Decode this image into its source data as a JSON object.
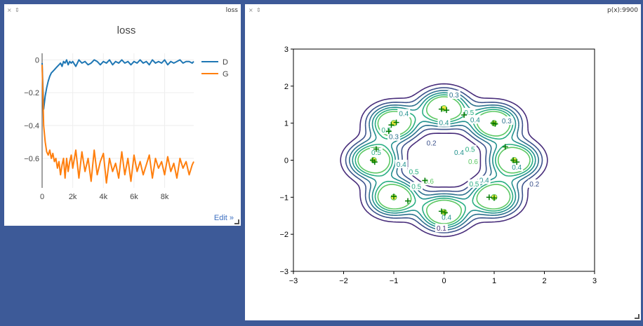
{
  "panes": {
    "loss": {
      "close_icon": "×",
      "pin_icon": "⇕",
      "title_tag": "loss",
      "edit_label": "Edit »"
    },
    "contour": {
      "close_icon": "×",
      "pin_icon": "⇕",
      "title_tag": "p(x):9900"
    }
  },
  "colors": {
    "background": "#3d5a98",
    "series_D": "#1f77b4",
    "series_G": "#ff7f0e"
  },
  "chart_data": [
    {
      "type": "line",
      "title": "loss",
      "xlabel": "",
      "ylabel": "",
      "xlim": [
        0,
        9900
      ],
      "ylim": [
        -0.78,
        0.04
      ],
      "x_ticks": [
        0,
        2000,
        4000,
        6000,
        8000
      ],
      "x_tick_labels": [
        "0",
        "2k",
        "4k",
        "6k",
        "8k"
      ],
      "y_ticks": [
        0,
        -0.2,
        -0.4,
        -0.6
      ],
      "y_tick_labels": [
        "0",
        "−0.2",
        "−0.4",
        "−0.6"
      ],
      "grid": true,
      "legend_position": "right",
      "series": [
        {
          "name": "D",
          "color": "#1f77b4",
          "x": [
            0,
            100,
            200,
            300,
            400,
            500,
            600,
            700,
            800,
            900,
            1000,
            1100,
            1200,
            1300,
            1400,
            1500,
            1600,
            1700,
            1800,
            1900,
            2000,
            2200,
            2400,
            2600,
            2800,
            3000,
            3200,
            3400,
            3600,
            3800,
            4000,
            4200,
            4400,
            4600,
            4800,
            5000,
            5200,
            5400,
            5600,
            5800,
            6000,
            6200,
            6400,
            6600,
            6800,
            7000,
            7200,
            7400,
            7600,
            7800,
            8000,
            8200,
            8400,
            8600,
            8800,
            9000,
            9200,
            9400,
            9600,
            9800,
            9900
          ],
          "y": [
            -0.02,
            -0.3,
            -0.22,
            -0.17,
            -0.13,
            -0.1,
            -0.08,
            -0.07,
            -0.06,
            -0.05,
            -0.04,
            -0.03,
            -0.02,
            -0.04,
            -0.01,
            -0.02,
            0.0,
            -0.03,
            -0.01,
            -0.02,
            -0.01,
            -0.04,
            0.0,
            -0.02,
            -0.01,
            -0.03,
            -0.02,
            0.0,
            -0.01,
            -0.03,
            -0.01,
            -0.02,
            0.0,
            -0.03,
            -0.01,
            -0.02,
            0.0,
            -0.02,
            -0.01,
            -0.03,
            -0.01,
            -0.02,
            0.0,
            -0.02,
            -0.01,
            -0.03,
            0.0,
            -0.02,
            -0.01,
            -0.02,
            0.0,
            -0.03,
            -0.01,
            -0.02,
            -0.01,
            0.0,
            -0.02,
            -0.01,
            -0.01,
            -0.02,
            -0.01
          ]
        },
        {
          "name": "G",
          "color": "#ff7f0e",
          "x": [
            0,
            100,
            200,
            300,
            400,
            500,
            600,
            700,
            800,
            900,
            1000,
            1100,
            1200,
            1300,
            1400,
            1500,
            1600,
            1700,
            1800,
            1900,
            2000,
            2200,
            2400,
            2600,
            2800,
            3000,
            3200,
            3400,
            3600,
            3800,
            4000,
            4200,
            4400,
            4600,
            4800,
            5000,
            5200,
            5400,
            5600,
            5800,
            6000,
            6200,
            6400,
            6600,
            6800,
            7000,
            7200,
            7400,
            7600,
            7800,
            8000,
            8200,
            8400,
            8600,
            8800,
            9000,
            9200,
            9400,
            9600,
            9800,
            9900
          ],
          "y": [
            -0.03,
            -0.4,
            -0.5,
            -0.56,
            -0.58,
            -0.55,
            -0.6,
            -0.57,
            -0.62,
            -0.6,
            -0.66,
            -0.62,
            -0.7,
            -0.64,
            -0.6,
            -0.72,
            -0.6,
            -0.68,
            -0.62,
            -0.58,
            -0.66,
            -0.55,
            -0.72,
            -0.56,
            -0.68,
            -0.6,
            -0.74,
            -0.55,
            -0.7,
            -0.62,
            -0.57,
            -0.75,
            -0.6,
            -0.68,
            -0.63,
            -0.72,
            -0.56,
            -0.7,
            -0.6,
            -0.74,
            -0.58,
            -0.68,
            -0.62,
            -0.7,
            -0.64,
            -0.58,
            -0.72,
            -0.6,
            -0.66,
            -0.62,
            -0.7,
            -0.59,
            -0.68,
            -0.63,
            -0.72,
            -0.6,
            -0.66,
            -0.62,
            -0.7,
            -0.64,
            -0.62
          ]
        }
      ]
    },
    {
      "type": "contour",
      "title": "",
      "xlabel": "",
      "ylabel": "",
      "xlim": [
        -3,
        3
      ],
      "ylim": [
        -3,
        3
      ],
      "x_ticks": [
        -3,
        -2,
        -1,
        0,
        1,
        2,
        3
      ],
      "x_tick_labels": [
        "−3",
        "−2",
        "−1",
        "0",
        "1",
        "2",
        "3"
      ],
      "y_ticks": [
        -3,
        -2,
        -1,
        0,
        1,
        2,
        3
      ],
      "y_tick_labels": [
        "−3",
        "−2",
        "−1",
        "0",
        "1",
        "2",
        "3"
      ],
      "grid": false,
      "levels": [
        0.1,
        0.2,
        0.3,
        0.4,
        0.5,
        0.6
      ],
      "level_colors": [
        "#472c7a",
        "#3b518b",
        "#2c718e",
        "#21908d",
        "#27ad81",
        "#5cc863"
      ],
      "modes": [
        {
          "x": -1.0,
          "y": 1.0
        },
        {
          "x": 0.0,
          "y": 1.4
        },
        {
          "x": 1.0,
          "y": 1.0
        },
        {
          "x": -1.4,
          "y": 0.0
        },
        {
          "x": 1.4,
          "y": 0.0
        },
        {
          "x": -1.0,
          "y": -1.0
        },
        {
          "x": 0.0,
          "y": -1.4
        },
        {
          "x": 1.0,
          "y": -1.0
        }
      ],
      "samples": [
        {
          "x": -1.05,
          "y": 0.95
        },
        {
          "x": -0.95,
          "y": 1.02
        },
        {
          "x": -1.1,
          "y": 0.78
        },
        {
          "x": -0.05,
          "y": 1.38
        },
        {
          "x": 0.05,
          "y": 1.35
        },
        {
          "x": 0.4,
          "y": 1.22
        },
        {
          "x": 0.98,
          "y": 1.0
        },
        {
          "x": 1.02,
          "y": 0.98
        },
        {
          "x": -1.35,
          "y": 0.3
        },
        {
          "x": -1.42,
          "y": 0.0
        },
        {
          "x": -1.38,
          "y": -0.05
        },
        {
          "x": 1.22,
          "y": 0.36
        },
        {
          "x": 1.38,
          "y": 0.0
        },
        {
          "x": 1.45,
          "y": -0.05
        },
        {
          "x": -1.0,
          "y": -0.98
        },
        {
          "x": -0.72,
          "y": -1.1
        },
        {
          "x": -0.38,
          "y": -0.55
        },
        {
          "x": -0.05,
          "y": -1.38
        },
        {
          "x": 0.02,
          "y": -1.42
        },
        {
          "x": 0.9,
          "y": -1.0
        },
        {
          "x": 1.0,
          "y": -1.02
        }
      ],
      "contour_labels": [
        {
          "text": "0.1",
          "x": -0.05,
          "y": -1.85,
          "level": 0.1
        },
        {
          "text": "0.2",
          "x": 1.8,
          "y": -0.65,
          "level": 0.2
        },
        {
          "text": "0.2",
          "x": -0.25,
          "y": 0.45,
          "level": 0.2
        },
        {
          "text": "0.3",
          "x": 0.2,
          "y": 1.75,
          "level": 0.3
        },
        {
          "text": "0.3",
          "x": 1.25,
          "y": 1.05,
          "level": 0.3
        },
        {
          "text": "0.3",
          "x": -1.0,
          "y": 0.62,
          "level": 0.3
        },
        {
          "text": "0.4",
          "x": -0.8,
          "y": 1.25,
          "level": 0.4
        },
        {
          "text": "0.4",
          "x": 0.0,
          "y": 1.0,
          "level": 0.4
        },
        {
          "text": "0.4",
          "x": 0.62,
          "y": 1.08,
          "level": 0.4
        },
        {
          "text": "0.4",
          "x": -0.85,
          "y": -0.12,
          "level": 0.4
        },
        {
          "text": "0.4",
          "x": 0.3,
          "y": 0.2,
          "level": 0.4
        },
        {
          "text": "0.4",
          "x": 0.05,
          "y": -1.55,
          "level": 0.4
        },
        {
          "text": "0.4",
          "x": 1.45,
          "y": -0.2,
          "level": 0.4
        },
        {
          "text": "0.4",
          "x": 0.8,
          "y": -0.55,
          "level": 0.4
        },
        {
          "text": "0.5",
          "x": -1.15,
          "y": 0.8,
          "level": 0.5
        },
        {
          "text": "0.5",
          "x": -1.35,
          "y": 0.2,
          "level": 0.5
        },
        {
          "text": "0.5",
          "x": 0.5,
          "y": 1.28,
          "level": 0.5
        },
        {
          "text": "0.5",
          "x": 0.52,
          "y": 0.28,
          "level": 0.5
        },
        {
          "text": "0.5",
          "x": -0.6,
          "y": -0.32,
          "level": 0.5
        },
        {
          "text": "0.5",
          "x": -0.55,
          "y": -0.72,
          "level": 0.5
        },
        {
          "text": "0.5",
          "x": 0.6,
          "y": -0.65,
          "level": 0.5
        },
        {
          "text": "0.6",
          "x": 0.58,
          "y": -0.05,
          "level": 0.6
        },
        {
          "text": "0.6",
          "x": -0.3,
          "y": -0.58,
          "level": 0.6
        }
      ]
    }
  ]
}
